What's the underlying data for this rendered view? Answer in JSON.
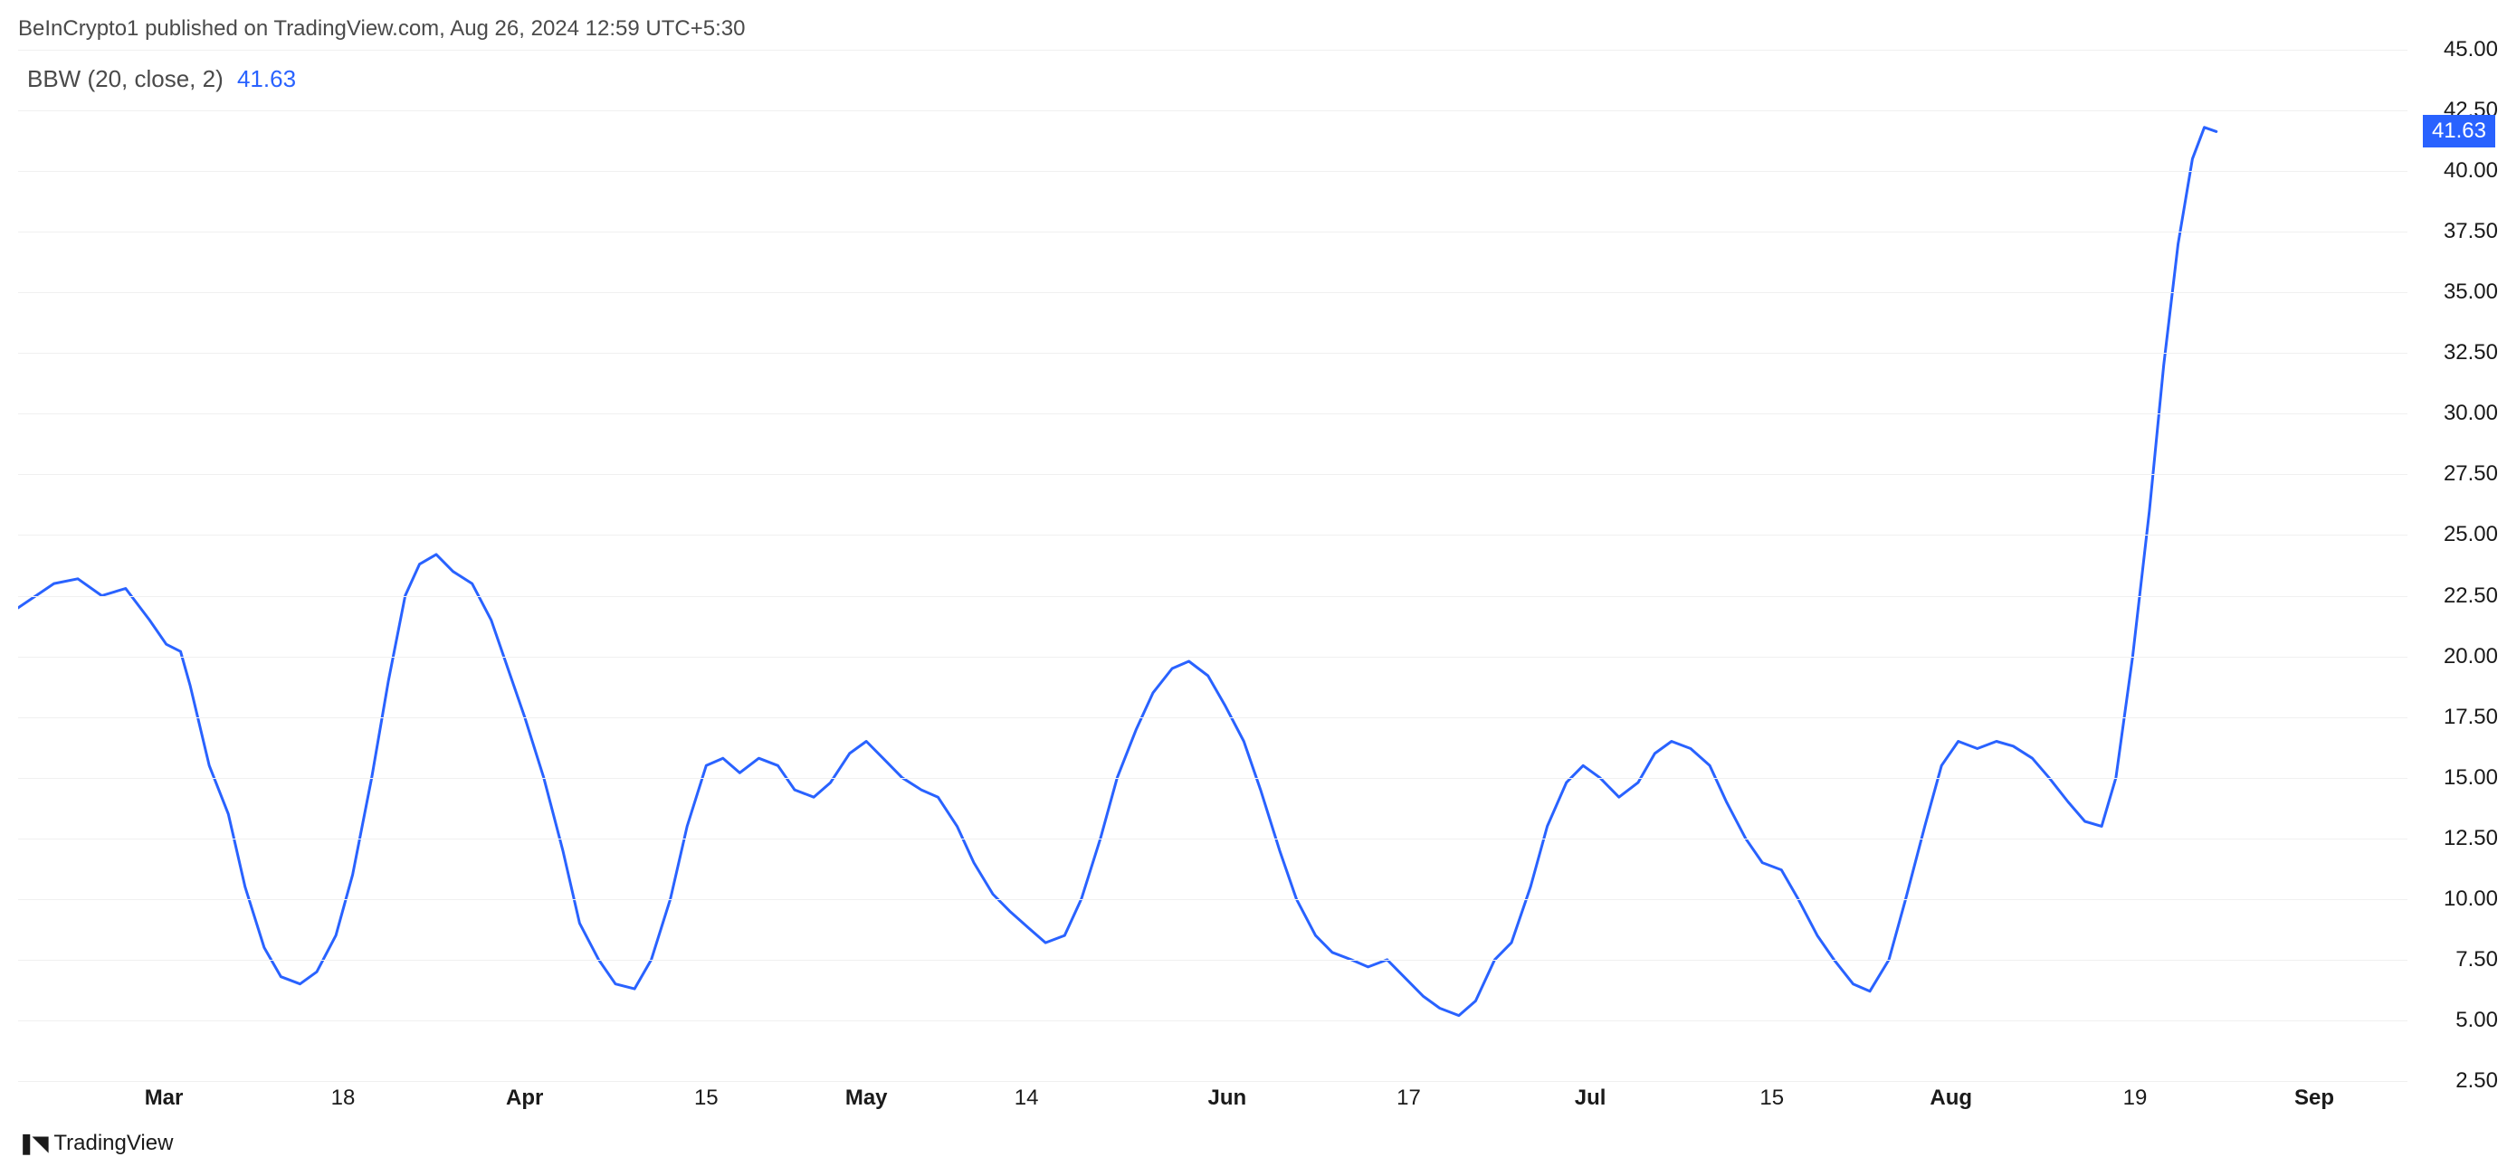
{
  "attribution": "BeInCrypto1 published on TradingView.com, Aug 26, 2024 12:59 UTC+5:30",
  "indicator": {
    "label": "BBW (20, close, 2)",
    "value": "41.63"
  },
  "logo_text": "TradingView",
  "chart": {
    "type": "line",
    "line_color": "#2962ff",
    "line_width": 3,
    "background_color": "#ffffff",
    "grid_color": "#f0f0f0",
    "text_color": "#1a1a1a",
    "attribution_color": "#4a4a4a",
    "badge_bg": "#2962ff",
    "badge_text_color": "#ffffff",
    "ylim": [
      2.5,
      45.0
    ],
    "yticks": [
      45.0,
      42.5,
      40.0,
      37.5,
      35.0,
      32.5,
      30.0,
      27.5,
      25.0,
      22.5,
      20.0,
      17.5,
      15.0,
      12.5,
      10.0,
      7.5,
      5.0,
      2.5
    ],
    "ytick_step": 2.5,
    "xticks": [
      {
        "pos": 0.061,
        "label": "Mar",
        "bold": true
      },
      {
        "pos": 0.136,
        "label": "18",
        "bold": false
      },
      {
        "pos": 0.212,
        "label": "Apr",
        "bold": true
      },
      {
        "pos": 0.288,
        "label": "15",
        "bold": false
      },
      {
        "pos": 0.355,
        "label": "May",
        "bold": true
      },
      {
        "pos": 0.422,
        "label": "14",
        "bold": false
      },
      {
        "pos": 0.506,
        "label": "Jun",
        "bold": true
      },
      {
        "pos": 0.582,
        "label": "17",
        "bold": false
      },
      {
        "pos": 0.658,
        "label": "Jul",
        "bold": true
      },
      {
        "pos": 0.734,
        "label": "15",
        "bold": false
      },
      {
        "pos": 0.809,
        "label": "Aug",
        "bold": true
      },
      {
        "pos": 0.886,
        "label": "19",
        "bold": false
      },
      {
        "pos": 0.961,
        "label": "Sep",
        "bold": true
      }
    ],
    "current_value": 41.63,
    "series": [
      {
        "x": 0.0,
        "y": 22.0
      },
      {
        "x": 0.015,
        "y": 23.0
      },
      {
        "x": 0.025,
        "y": 23.2
      },
      {
        "x": 0.035,
        "y": 22.5
      },
      {
        "x": 0.045,
        "y": 22.8
      },
      {
        "x": 0.055,
        "y": 21.5
      },
      {
        "x": 0.062,
        "y": 20.5
      },
      {
        "x": 0.068,
        "y": 20.2
      },
      {
        "x": 0.072,
        "y": 18.8
      },
      {
        "x": 0.08,
        "y": 15.5
      },
      {
        "x": 0.088,
        "y": 13.5
      },
      {
        "x": 0.095,
        "y": 10.5
      },
      {
        "x": 0.103,
        "y": 8.0
      },
      {
        "x": 0.11,
        "y": 6.8
      },
      {
        "x": 0.118,
        "y": 6.5
      },
      {
        "x": 0.125,
        "y": 7.0
      },
      {
        "x": 0.133,
        "y": 8.5
      },
      {
        "x": 0.14,
        "y": 11.0
      },
      {
        "x": 0.148,
        "y": 15.0
      },
      {
        "x": 0.155,
        "y": 19.0
      },
      {
        "x": 0.162,
        "y": 22.5
      },
      {
        "x": 0.168,
        "y": 23.8
      },
      {
        "x": 0.175,
        "y": 24.2
      },
      {
        "x": 0.182,
        "y": 23.5
      },
      {
        "x": 0.19,
        "y": 23.0
      },
      {
        "x": 0.198,
        "y": 21.5
      },
      {
        "x": 0.205,
        "y": 19.5
      },
      {
        "x": 0.212,
        "y": 17.5
      },
      {
        "x": 0.22,
        "y": 15.0
      },
      {
        "x": 0.228,
        "y": 12.0
      },
      {
        "x": 0.235,
        "y": 9.0
      },
      {
        "x": 0.243,
        "y": 7.5
      },
      {
        "x": 0.25,
        "y": 6.5
      },
      {
        "x": 0.258,
        "y": 6.3
      },
      {
        "x": 0.265,
        "y": 7.5
      },
      {
        "x": 0.273,
        "y": 10.0
      },
      {
        "x": 0.28,
        "y": 13.0
      },
      {
        "x": 0.288,
        "y": 15.5
      },
      {
        "x": 0.295,
        "y": 15.8
      },
      {
        "x": 0.302,
        "y": 15.2
      },
      {
        "x": 0.31,
        "y": 15.8
      },
      {
        "x": 0.318,
        "y": 15.5
      },
      {
        "x": 0.325,
        "y": 14.5
      },
      {
        "x": 0.333,
        "y": 14.2
      },
      {
        "x": 0.34,
        "y": 14.8
      },
      {
        "x": 0.348,
        "y": 16.0
      },
      {
        "x": 0.355,
        "y": 16.5
      },
      {
        "x": 0.362,
        "y": 15.8
      },
      {
        "x": 0.37,
        "y": 15.0
      },
      {
        "x": 0.378,
        "y": 14.5
      },
      {
        "x": 0.385,
        "y": 14.2
      },
      {
        "x": 0.393,
        "y": 13.0
      },
      {
        "x": 0.4,
        "y": 11.5
      },
      {
        "x": 0.408,
        "y": 10.2
      },
      {
        "x": 0.415,
        "y": 9.5
      },
      {
        "x": 0.423,
        "y": 8.8
      },
      {
        "x": 0.43,
        "y": 8.2
      },
      {
        "x": 0.438,
        "y": 8.5
      },
      {
        "x": 0.445,
        "y": 10.0
      },
      {
        "x": 0.453,
        "y": 12.5
      },
      {
        "x": 0.46,
        "y": 15.0
      },
      {
        "x": 0.468,
        "y": 17.0
      },
      {
        "x": 0.475,
        "y": 18.5
      },
      {
        "x": 0.483,
        "y": 19.5
      },
      {
        "x": 0.49,
        "y": 19.8
      },
      {
        "x": 0.498,
        "y": 19.2
      },
      {
        "x": 0.505,
        "y": 18.0
      },
      {
        "x": 0.513,
        "y": 16.5
      },
      {
        "x": 0.52,
        "y": 14.5
      },
      {
        "x": 0.528,
        "y": 12.0
      },
      {
        "x": 0.535,
        "y": 10.0
      },
      {
        "x": 0.543,
        "y": 8.5
      },
      {
        "x": 0.55,
        "y": 7.8
      },
      {
        "x": 0.558,
        "y": 7.5
      },
      {
        "x": 0.565,
        "y": 7.2
      },
      {
        "x": 0.573,
        "y": 7.5
      },
      {
        "x": 0.58,
        "y": 6.8
      },
      {
        "x": 0.588,
        "y": 6.0
      },
      {
        "x": 0.595,
        "y": 5.5
      },
      {
        "x": 0.603,
        "y": 5.2
      },
      {
        "x": 0.61,
        "y": 5.8
      },
      {
        "x": 0.618,
        "y": 7.5
      },
      {
        "x": 0.625,
        "y": 8.2
      },
      {
        "x": 0.633,
        "y": 10.5
      },
      {
        "x": 0.64,
        "y": 13.0
      },
      {
        "x": 0.648,
        "y": 14.8
      },
      {
        "x": 0.655,
        "y": 15.5
      },
      {
        "x": 0.662,
        "y": 15.0
      },
      {
        "x": 0.67,
        "y": 14.2
      },
      {
        "x": 0.678,
        "y": 14.8
      },
      {
        "x": 0.685,
        "y": 16.0
      },
      {
        "x": 0.692,
        "y": 16.5
      },
      {
        "x": 0.7,
        "y": 16.2
      },
      {
        "x": 0.708,
        "y": 15.5
      },
      {
        "x": 0.715,
        "y": 14.0
      },
      {
        "x": 0.723,
        "y": 12.5
      },
      {
        "x": 0.73,
        "y": 11.5
      },
      {
        "x": 0.738,
        "y": 11.2
      },
      {
        "x": 0.745,
        "y": 10.0
      },
      {
        "x": 0.753,
        "y": 8.5
      },
      {
        "x": 0.76,
        "y": 7.5
      },
      {
        "x": 0.768,
        "y": 6.5
      },
      {
        "x": 0.775,
        "y": 6.2
      },
      {
        "x": 0.783,
        "y": 7.5
      },
      {
        "x": 0.79,
        "y": 10.0
      },
      {
        "x": 0.798,
        "y": 13.0
      },
      {
        "x": 0.805,
        "y": 15.5
      },
      {
        "x": 0.812,
        "y": 16.5
      },
      {
        "x": 0.82,
        "y": 16.2
      },
      {
        "x": 0.828,
        "y": 16.5
      },
      {
        "x": 0.835,
        "y": 16.3
      },
      {
        "x": 0.843,
        "y": 15.8
      },
      {
        "x": 0.85,
        "y": 15.0
      },
      {
        "x": 0.858,
        "y": 14.0
      },
      {
        "x": 0.865,
        "y": 13.2
      },
      {
        "x": 0.872,
        "y": 13.0
      },
      {
        "x": 0.878,
        "y": 15.0
      },
      {
        "x": 0.885,
        "y": 20.0
      },
      {
        "x": 0.892,
        "y": 26.0
      },
      {
        "x": 0.898,
        "y": 32.0
      },
      {
        "x": 0.904,
        "y": 37.0
      },
      {
        "x": 0.91,
        "y": 40.5
      },
      {
        "x": 0.915,
        "y": 41.8
      },
      {
        "x": 0.92,
        "y": 41.63
      }
    ]
  }
}
